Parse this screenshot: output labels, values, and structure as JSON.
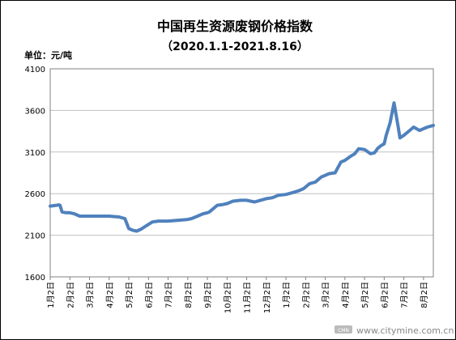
{
  "chart_data": {
    "type": "line",
    "title": "中国再生资源废钢价格指数",
    "subtitle": "（2020.1.1-2021.8.16）",
    "unit_label": "单位：元/吨",
    "xlabel": "",
    "ylabel": "",
    "ylim": [
      1600,
      4100
    ],
    "y_ticks": [
      1600,
      2100,
      2600,
      3100,
      3600,
      4100
    ],
    "grid": true,
    "legend": "none",
    "colors": {
      "line": "#4F81BD",
      "grid": "#C0C0C0",
      "axis": "#808080"
    },
    "x_range": [
      0,
      19.5
    ],
    "x_tick_positions": [
      0,
      1,
      2,
      3,
      4,
      5,
      6,
      7,
      8,
      9,
      10,
      11,
      12,
      13,
      14,
      15,
      16,
      17,
      18,
      19
    ],
    "x_tick_labels": [
      "1月2日",
      "2月2日",
      "3月2日",
      "4月2日",
      "5月2日",
      "6月2日",
      "7月2日",
      "8月2日",
      "9月2日",
      "10月2日",
      "11月2日",
      "12月2日",
      "1月2日",
      "2月2日",
      "3月2日",
      "4月2日",
      "5月2日",
      "6月2日",
      "7月2日",
      "8月2日"
    ],
    "series": [
      {
        "name": "",
        "x": [
          0,
          0.3,
          0.45,
          0.5,
          0.6,
          0.8,
          1.0,
          1.2,
          1.4,
          1.5,
          1.8,
          2.0,
          2.5,
          3.0,
          3.5,
          3.8,
          4.0,
          4.2,
          4.4,
          4.6,
          4.8,
          5.0,
          5.2,
          5.5,
          6.0,
          6.5,
          7.0,
          7.2,
          7.5,
          7.8,
          8.0,
          8.1,
          8.5,
          8.8,
          9.0,
          9.3,
          9.7,
          10.0,
          10.4,
          10.7,
          11.0,
          11.3,
          11.6,
          12.0,
          12.3,
          12.6,
          12.9,
          13.2,
          13.5,
          13.8,
          14.0,
          14.2,
          14.5,
          14.8,
          15.0,
          15.3,
          15.5,
          15.7,
          16.0,
          16.3,
          16.5,
          16.6,
          16.65,
          16.8,
          17.0,
          17.1,
          17.3,
          17.5,
          17.7,
          17.8,
          18.0,
          18.2,
          18.5,
          18.8,
          19.0,
          19.2,
          19.5
        ],
        "values": [
          2450,
          2460,
          2465,
          2460,
          2380,
          2370,
          2370,
          2360,
          2340,
          2330,
          2330,
          2330,
          2330,
          2330,
          2320,
          2300,
          2180,
          2160,
          2150,
          2170,
          2200,
          2230,
          2260,
          2270,
          2270,
          2280,
          2290,
          2300,
          2330,
          2360,
          2370,
          2380,
          2460,
          2470,
          2480,
          2510,
          2520,
          2520,
          2500,
          2520,
          2540,
          2550,
          2580,
          2590,
          2610,
          2630,
          2660,
          2720,
          2740,
          2800,
          2820,
          2840,
          2850,
          2980,
          3000,
          3050,
          3080,
          3140,
          3130,
          3080,
          3090,
          3120,
          3140,
          3170,
          3200,
          3300,
          3450,
          3690,
          3420,
          3270,
          3300,
          3340,
          3400,
          3360,
          3380,
          3400,
          3420
        ]
      }
    ]
  },
  "watermark": {
    "logo_text": "CMN",
    "url": "www.citymine.com.cn"
  }
}
